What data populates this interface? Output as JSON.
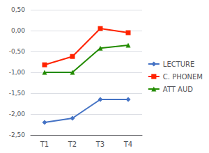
{
  "chart_data": {
    "type": "line",
    "categories": [
      "T1",
      "T2",
      "T3",
      "T4"
    ],
    "series": [
      {
        "name": "LECTURE",
        "color": "#4472C4",
        "marker": "diamond",
        "values": [
          -2.2,
          -2.1,
          -1.65,
          -1.65
        ]
      },
      {
        "name": "C. PHONEM",
        "color": "#FF2200",
        "marker": "square",
        "values": [
          -0.82,
          -0.62,
          0.05,
          -0.05
        ]
      },
      {
        "name": "ATT AUD",
        "color": "#228B00",
        "marker": "triangle",
        "values": [
          -1.0,
          -1.0,
          -0.42,
          -0.35
        ]
      }
    ],
    "ylim": [
      -2.5,
      0.5
    ],
    "yticks": [
      {
        "value": -2.5,
        "label": "-2,50"
      },
      {
        "value": -2.0,
        "label": "-2,00"
      },
      {
        "value": -1.5,
        "label": "-1,50"
      },
      {
        "value": -1.0,
        "label": "-1,00"
      },
      {
        "value": -0.5,
        "label": "-0,50"
      },
      {
        "value": 0.0,
        "label": "0,00"
      },
      {
        "value": 0.5,
        "label": "0,50"
      }
    ],
    "grid": true,
    "legend": "right"
  }
}
